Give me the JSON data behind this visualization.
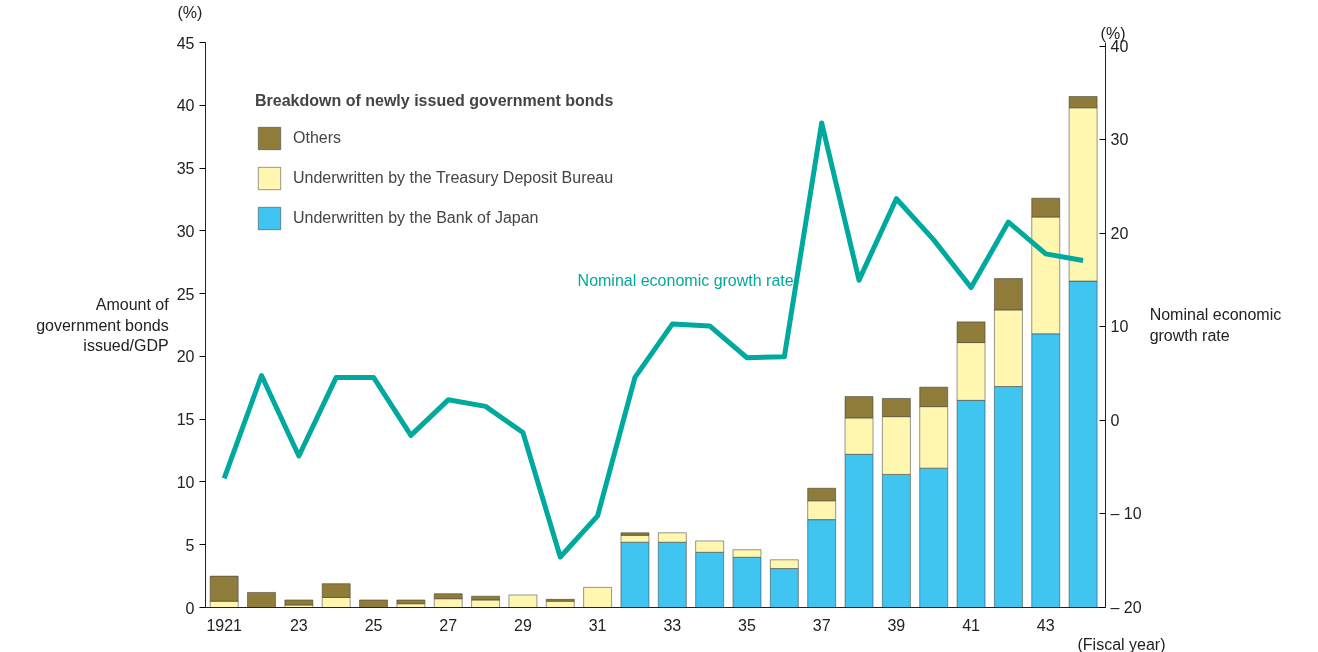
{
  "chart_data": {
    "type": "bar",
    "stacked": true,
    "categories": [
      "1921",
      null,
      "23",
      null,
      "25",
      null,
      "27",
      null,
      "29",
      null,
      "31",
      null,
      "33",
      null,
      "35",
      null,
      "37",
      null,
      "39",
      null,
      "41",
      null,
      "43",
      null
    ],
    "xlabel": "(Fiscal year)",
    "ylabel": "Amount of\ngovernment bonds\nissued/GDP",
    "y2label": "Nominal economic\ngrowth rate",
    "legend_title": "Breakdown of newly issued government bonds",
    "annotations": [
      "(%)",
      "(%)"
    ],
    "series": [
      {
        "name": "Underwritten by the Bank of Japan",
        "color": "#40c4f0",
        "values": [
          0,
          0,
          0,
          0,
          0,
          0,
          0,
          0,
          0,
          0,
          0,
          5.2,
          5.2,
          4.4,
          4.0,
          3.1,
          7.0,
          12.2,
          10.6,
          11.1,
          16.5,
          17.6,
          21.8,
          26.0
        ]
      },
      {
        "name": "Underwritten by the Treasury Deposit Bureau",
        "color": "#fff6b0",
        "values": [
          0.5,
          0,
          0.2,
          0.8,
          0,
          0.3,
          0.7,
          0.6,
          1.0,
          0.5,
          1.6,
          0.55,
          0.75,
          0.9,
          0.6,
          0.7,
          1.5,
          2.9,
          4.6,
          4.9,
          4.6,
          6.1,
          9.3,
          13.8
        ]
      },
      {
        "name": "Others",
        "color": "#8f7b3a",
        "values": [
          2.0,
          1.2,
          0.4,
          1.1,
          0.6,
          0.3,
          0.4,
          0.3,
          0,
          0.15,
          0,
          0.2,
          0,
          0,
          0,
          0,
          1.0,
          1.7,
          1.45,
          1.55,
          1.65,
          2.5,
          1.5,
          0.9
        ]
      },
      {
        "name": "Nominal economic growth rate",
        "type": "line",
        "axis": "y2",
        "color": "#00a99d",
        "values": [
          -6.2,
          4.8,
          -3.8,
          4.6,
          4.6,
          -1.6,
          2.2,
          1.5,
          -1.3,
          -14.6,
          -10.2,
          4.6,
          10.3,
          10.1,
          6.7,
          6.8,
          31.8,
          15.0,
          23.7,
          19.3,
          14.2,
          21.2,
          17.8,
          17.1
        ]
      }
    ],
    "ylim": [
      0,
      45
    ],
    "yticks": [
      0,
      5,
      10,
      15,
      20,
      25,
      30,
      35,
      40,
      45
    ],
    "y2lim": [
      -20,
      40.4
    ],
    "y2ticks": [
      {
        "value": -20,
        "label": "– 20"
      },
      {
        "value": -10,
        "label": "– 10"
      },
      0,
      10,
      20,
      30,
      40
    ],
    "legend": "top left",
    "grid": false
  }
}
